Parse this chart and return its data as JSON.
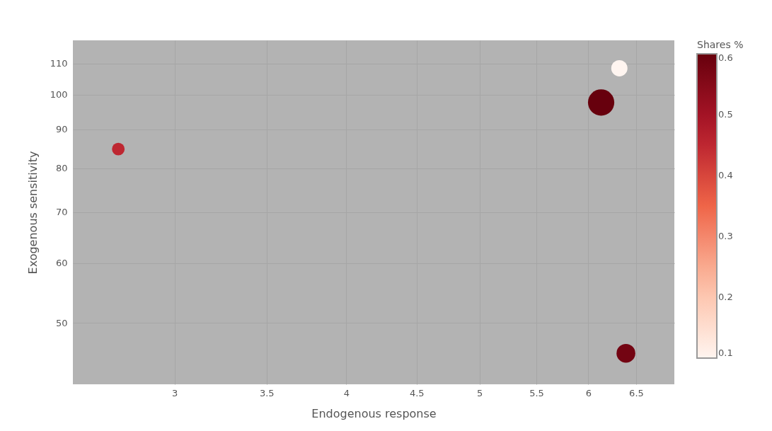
{
  "chart_data": {
    "type": "bubble",
    "xlabel": "Endogenous response",
    "ylabel": "Exogenous sensitivity",
    "clabel": "Shares %",
    "x": [
      2.73,
      6.13,
      6.32,
      6.39
    ],
    "values": [
      84.8,
      97.7,
      108.4,
      45.6
    ],
    "sizes": [
      0.23,
      1,
      0.38,
      0.51
    ],
    "cvalues": [
      0.45,
      0.6,
      0.1,
      0.58
    ],
    "clim": [
      0.1,
      0.6
    ],
    "cticks": [
      0.1,
      0.2,
      0.3,
      0.4,
      0.5,
      0.6
    ],
    "xlim": [
      2.53,
      6.93
    ],
    "xticks": [
      3,
      3.5,
      4,
      4.5,
      5,
      5.5,
      6,
      6.5
    ],
    "ylim": [
      41.5,
      118
    ],
    "yticks": [
      50,
      60,
      70,
      80,
      90,
      100,
      110
    ],
    "log": "xy",
    "grid": true
  }
}
